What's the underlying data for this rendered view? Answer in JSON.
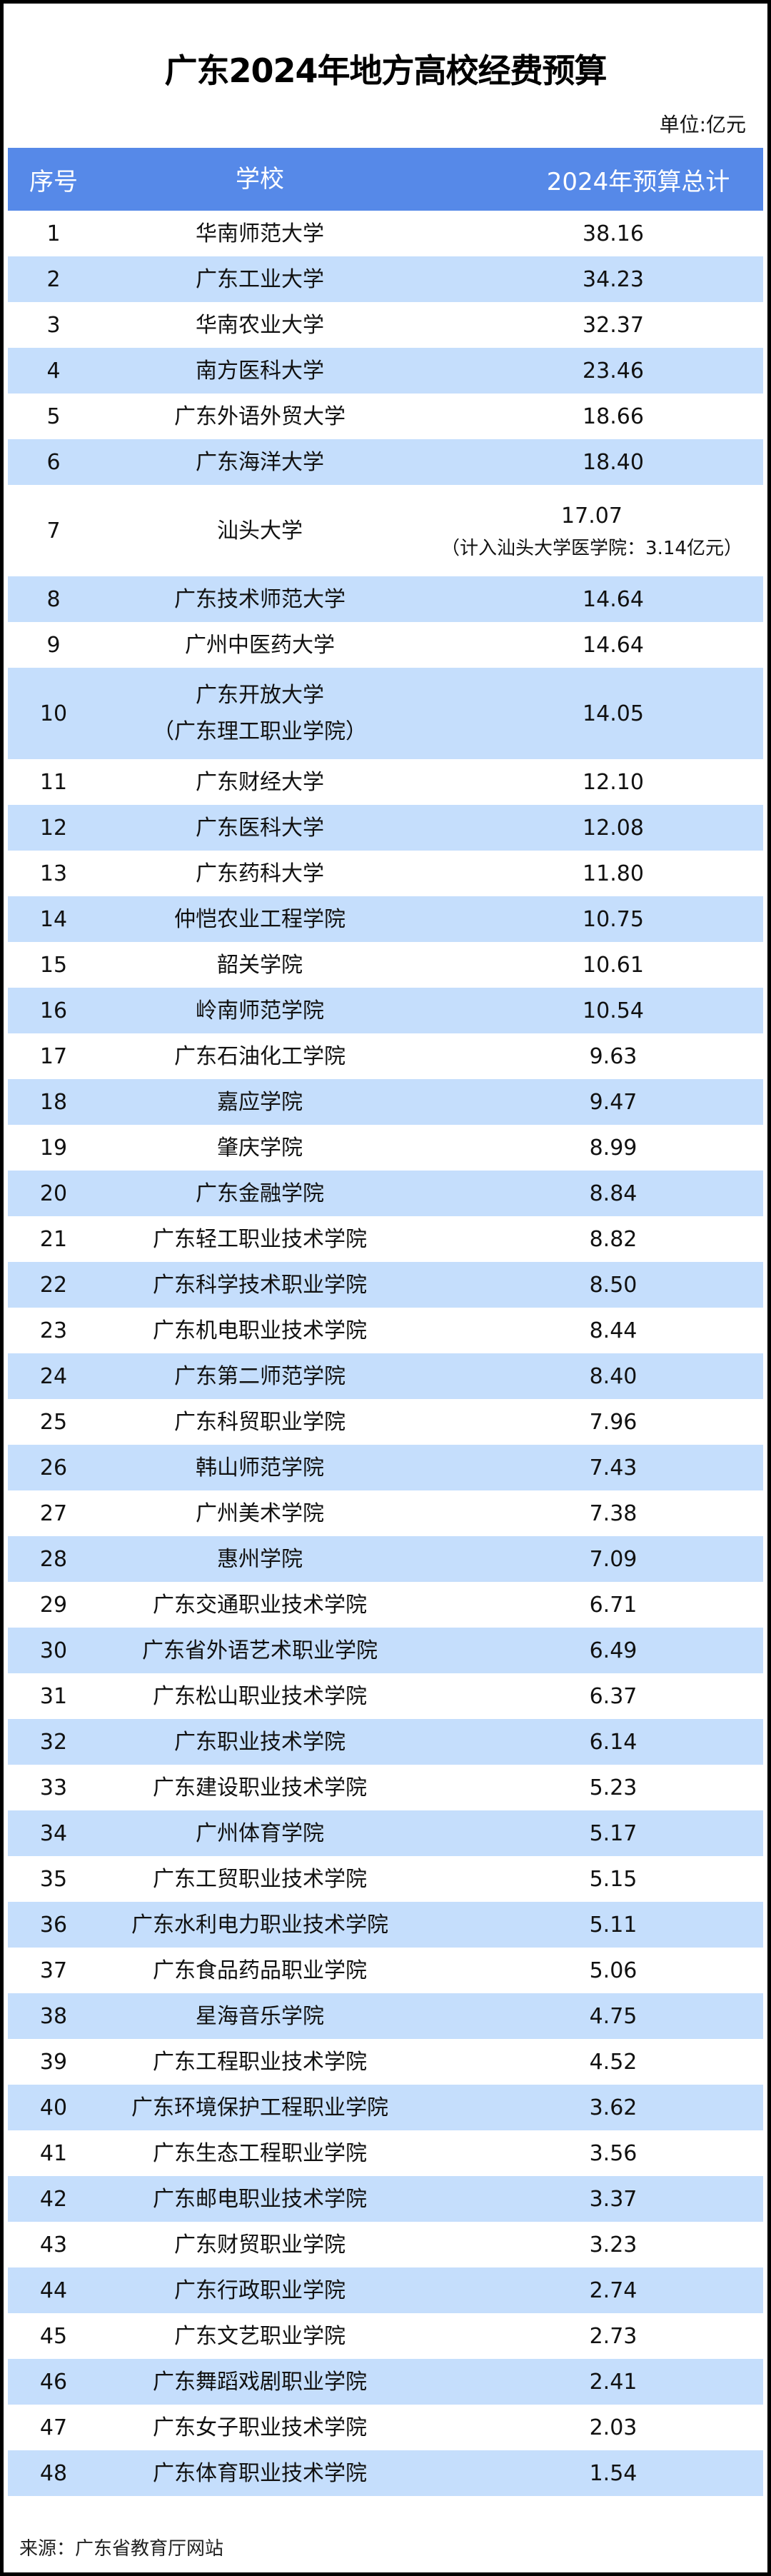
{
  "title": "广东2024年地方高校经费预算",
  "unit": "单位:亿元",
  "colors": {
    "header_bg": "#5689e8",
    "alt_row_bg": "#c5defc"
  },
  "table": {
    "headers": [
      "序号",
      "学校",
      "2024年预算总计"
    ],
    "rows": [
      {
        "no": "1",
        "name": "华南师范大学",
        "value": "38.16"
      },
      {
        "no": "2",
        "name": "广东工业大学",
        "value": "34.23"
      },
      {
        "no": "3",
        "name": "华南农业大学",
        "value": "32.37"
      },
      {
        "no": "4",
        "name": "南方医科大学",
        "value": "23.46"
      },
      {
        "no": "5",
        "name": "广东外语外贸大学",
        "value": "18.66"
      },
      {
        "no": "6",
        "name": "广东海洋大学",
        "value": "18.40"
      },
      {
        "no": "7",
        "name": "汕头大学",
        "value": "17.07",
        "note": "（计入汕头大学医学院：3.14亿元）"
      },
      {
        "no": "8",
        "name": "广东技术师范大学",
        "value": "14.64"
      },
      {
        "no": "9",
        "name": "广州中医药大学",
        "value": "14.64"
      },
      {
        "no": "10",
        "name": "广东开放大学",
        "name2": "（广东理工职业学院）",
        "value": "14.05"
      },
      {
        "no": "11",
        "name": "广东财经大学",
        "value": "12.10"
      },
      {
        "no": "12",
        "name": "广东医科大学",
        "value": "12.08"
      },
      {
        "no": "13",
        "name": "广东药科大学",
        "value": "11.80"
      },
      {
        "no": "14",
        "name": "仲恺农业工程学院",
        "value": "10.75"
      },
      {
        "no": "15",
        "name": "韶关学院",
        "value": "10.61"
      },
      {
        "no": "16",
        "name": "岭南师范学院",
        "value": "10.54"
      },
      {
        "no": "17",
        "name": "广东石油化工学院",
        "value": "9.63"
      },
      {
        "no": "18",
        "name": "嘉应学院",
        "value": "9.47"
      },
      {
        "no": "19",
        "name": "肇庆学院",
        "value": "8.99"
      },
      {
        "no": "20",
        "name": "广东金融学院",
        "value": "8.84"
      },
      {
        "no": "21",
        "name": "广东轻工职业技术学院",
        "value": "8.82"
      },
      {
        "no": "22",
        "name": "广东科学技术职业学院",
        "value": "8.50"
      },
      {
        "no": "23",
        "name": "广东机电职业技术学院",
        "value": "8.44"
      },
      {
        "no": "24",
        "name": "广东第二师范学院",
        "value": "8.40"
      },
      {
        "no": "25",
        "name": "广东科贸职业学院",
        "value": "7.96"
      },
      {
        "no": "26",
        "name": "韩山师范学院",
        "value": "7.43"
      },
      {
        "no": "27",
        "name": "广州美术学院",
        "value": "7.38"
      },
      {
        "no": "28",
        "name": "惠州学院",
        "value": "7.09"
      },
      {
        "no": "29",
        "name": "广东交通职业技术学院",
        "value": "6.71"
      },
      {
        "no": "30",
        "name": "广东省外语艺术职业学院",
        "value": "6.49"
      },
      {
        "no": "31",
        "name": "广东松山职业技术学院",
        "value": "6.37"
      },
      {
        "no": "32",
        "name": "广东职业技术学院",
        "value": "6.14"
      },
      {
        "no": "33",
        "name": "广东建设职业技术学院",
        "value": "5.23"
      },
      {
        "no": "34",
        "name": "广州体育学院",
        "value": "5.17"
      },
      {
        "no": "35",
        "name": "广东工贸职业技术学院",
        "value": "5.15"
      },
      {
        "no": "36",
        "name": "广东水利电力职业技术学院",
        "value": "5.11"
      },
      {
        "no": "37",
        "name": "广东食品药品职业学院",
        "value": "5.06"
      },
      {
        "no": "38",
        "name": "星海音乐学院",
        "value": "4.75"
      },
      {
        "no": "39",
        "name": "广东工程职业技术学院",
        "value": "4.52"
      },
      {
        "no": "40",
        "name": "广东环境保护工程职业学院",
        "value": "3.62"
      },
      {
        "no": "41",
        "name": "广东生态工程职业学院",
        "value": "3.56"
      },
      {
        "no": "42",
        "name": "广东邮电职业技术学院",
        "value": "3.37"
      },
      {
        "no": "43",
        "name": "广东财贸职业学院",
        "value": "3.23"
      },
      {
        "no": "44",
        "name": "广东行政职业学院",
        "value": "2.74"
      },
      {
        "no": "45",
        "name": "广东文艺职业学院",
        "value": "2.73"
      },
      {
        "no": "46",
        "name": "广东舞蹈戏剧职业学院",
        "value": "2.41"
      },
      {
        "no": "47",
        "name": "广东女子职业技术学院",
        "value": "2.03"
      },
      {
        "no": "48",
        "name": "广东体育职业技术学院",
        "value": "1.54"
      }
    ]
  },
  "source": "来源：广东省教育厅网站"
}
